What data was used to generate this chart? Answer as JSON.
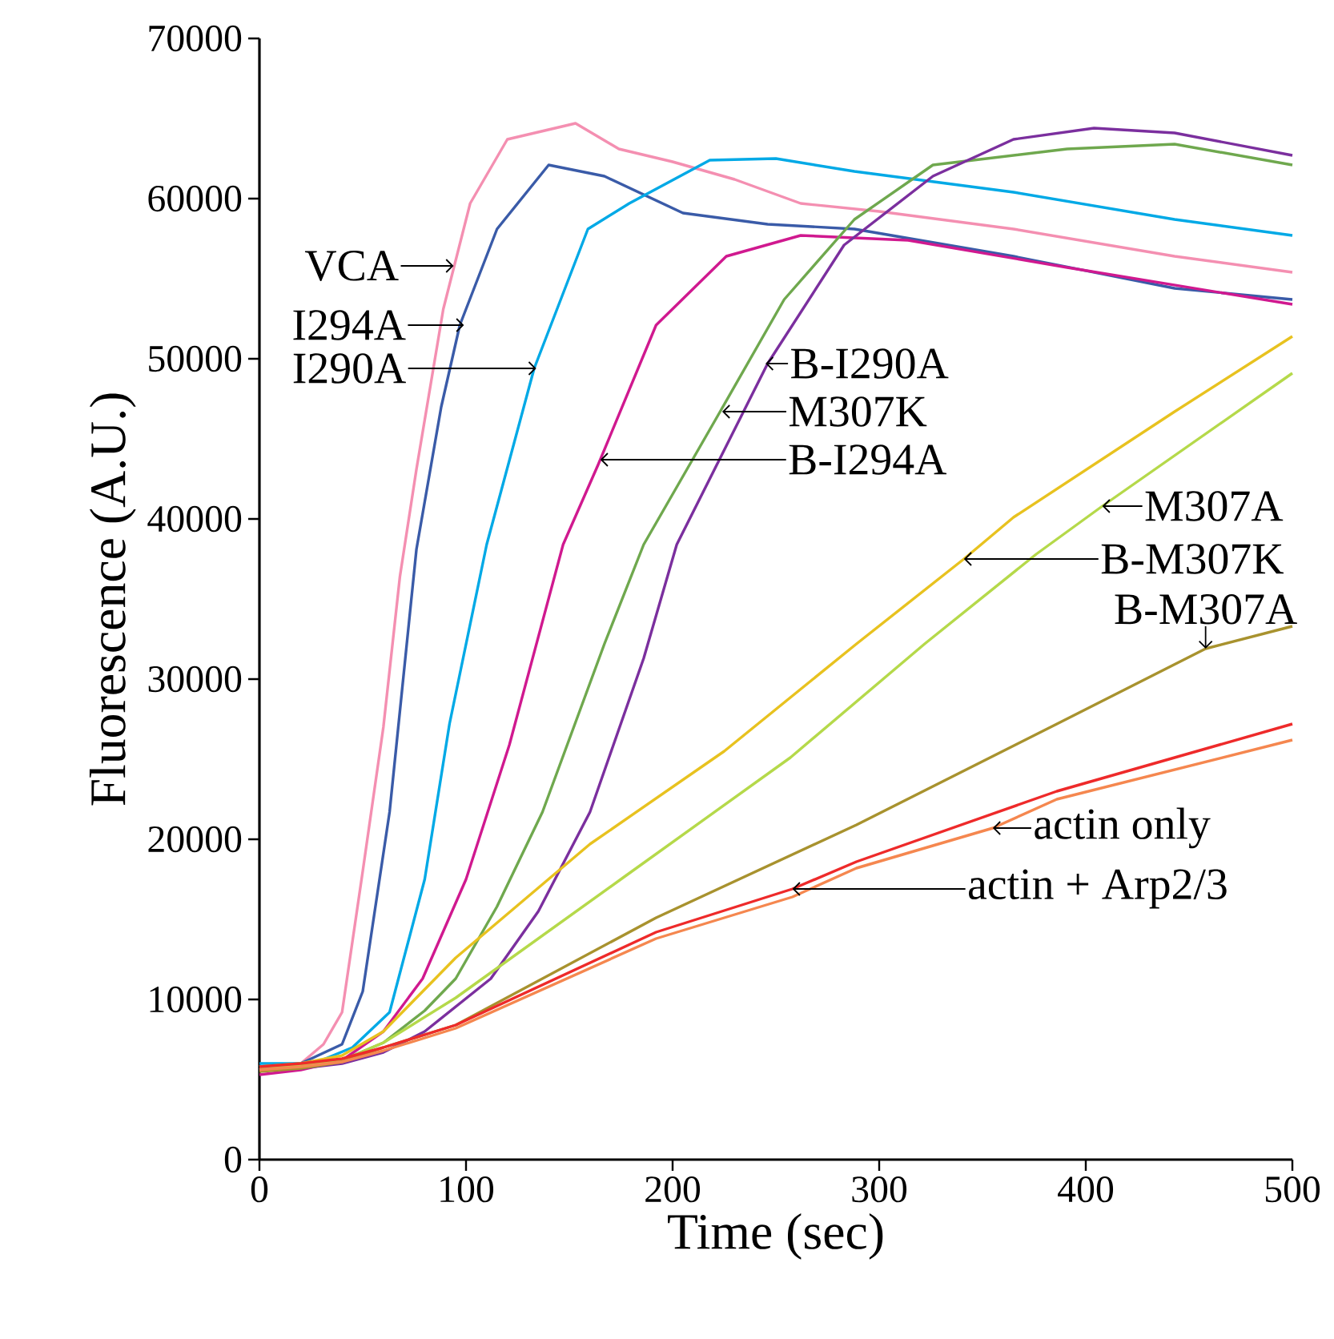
{
  "chart_data": {
    "type": "line",
    "xlabel": "Time (sec)",
    "ylabel": "Fluorescence (A.U.)",
    "xlim": [
      0,
      500
    ],
    "ylim": [
      0,
      70000
    ],
    "xticks": [
      0,
      100,
      200,
      300,
      400,
      500
    ],
    "yticks": [
      0,
      10000,
      20000,
      30000,
      40000,
      50000,
      60000,
      70000
    ],
    "marker": "none",
    "line_style": "solid",
    "series": [
      {
        "color": "#f48fb1",
        "x": [
          0,
          20,
          31,
          40,
          50,
          60,
          68,
          76,
          89,
          102,
          120,
          153,
          174,
          200,
          230,
          262,
          300,
          365,
          443,
          500
        ],
        "values": [
          5600,
          6000,
          7200,
          9200,
          18000,
          27000,
          36400,
          43100,
          53100,
          59700,
          63700,
          64700,
          63100,
          62300,
          61200,
          59700,
          59200,
          58100,
          56400,
          55400
        ]
      },
      {
        "color": "#3a5ba8",
        "x": [
          0,
          20,
          40,
          50,
          63,
          76,
          88,
          97,
          115,
          140,
          167,
          205,
          246,
          288,
          365,
          443,
          500
        ],
        "values": [
          5800,
          6000,
          7200,
          10500,
          21700,
          38100,
          47000,
          52100,
          58100,
          62100,
          61400,
          59100,
          58400,
          58100,
          56400,
          54400,
          53700
        ]
      },
      {
        "color": "#00a9e6",
        "x": [
          0,
          20,
          30,
          45,
          63,
          80,
          92,
          110,
          133,
          159,
          179,
          218,
          250,
          288,
          365,
          443,
          500
        ],
        "values": [
          6000,
          6000,
          6200,
          7000,
          9200,
          17500,
          27200,
          38400,
          49400,
          58100,
          59700,
          62400,
          62500,
          61700,
          60400,
          58700,
          57700
        ]
      },
      {
        "color": "#d0198f",
        "x": [
          0,
          20,
          40,
          60,
          79,
          100,
          121,
          147,
          164,
          192,
          226,
          262,
          314,
          391,
          500
        ],
        "values": [
          5300,
          5600,
          6200,
          8000,
          11300,
          17500,
          25900,
          38400,
          43400,
          52100,
          56400,
          57700,
          57400,
          55700,
          53400
        ]
      },
      {
        "color": "#6fa84e",
        "x": [
          0,
          20,
          40,
          60,
          80,
          95,
          115,
          137,
          167,
          186,
          223,
          254,
          288,
          326,
          391,
          443,
          500
        ],
        "values": [
          5800,
          5900,
          6200,
          7300,
          9300,
          11300,
          15800,
          21700,
          32200,
          38400,
          46700,
          53700,
          58700,
          62100,
          63100,
          63400,
          62100
        ]
      },
      {
        "color": "#7b2f9e",
        "x": [
          0,
          20,
          40,
          60,
          80,
          112,
          135,
          160,
          186,
          202,
          246,
          283,
          326,
          365,
          404,
          443,
          500
        ],
        "values": [
          5600,
          5700,
          6000,
          6700,
          8000,
          11300,
          15500,
          21700,
          31300,
          38400,
          49700,
          57100,
          61400,
          63700,
          64400,
          64100,
          62700
        ]
      },
      {
        "color": "#e8c21f",
        "x": [
          0,
          20,
          40,
          60,
          95,
          160,
          225,
          289,
          341,
          365,
          443,
          500
        ],
        "values": [
          5800,
          6000,
          6500,
          8000,
          12600,
          19700,
          25500,
          32200,
          37500,
          40100,
          46700,
          51400
        ]
      },
      {
        "color": "#b5d94a",
        "x": [
          0,
          20,
          40,
          60,
          95,
          176,
          257,
          322,
          376,
          408,
          500
        ],
        "values": [
          5800,
          5900,
          6200,
          7300,
          10100,
          17600,
          25100,
          32200,
          37800,
          40800,
          49100
        ]
      },
      {
        "color": "#a8922e",
        "x": [
          0,
          20,
          40,
          60,
          95,
          192,
          289,
          386,
          458,
          500
        ],
        "values": [
          5500,
          5700,
          6100,
          7000,
          8400,
          15100,
          20900,
          27200,
          31900,
          33300
        ]
      },
      {
        "color": "#f5874f",
        "x": [
          0,
          20,
          40,
          60,
          95,
          192,
          258,
          289,
          355,
          386,
          500
        ],
        "values": [
          5600,
          5800,
          6100,
          6800,
          8200,
          13800,
          16400,
          18200,
          20700,
          22500,
          26200
        ]
      },
      {
        "color": "#ee2a2a",
        "x": [
          0,
          20,
          40,
          60,
          95,
          192,
          258,
          289,
          386,
          500
        ],
        "values": [
          5800,
          6000,
          6300,
          7000,
          8400,
          14200,
          16900,
          18600,
          23000,
          27200
        ]
      }
    ],
    "annotations": [
      {
        "text": "VCA",
        "x": 94,
        "y": 55800
      },
      {
        "text": "I294A",
        "x": 99,
        "y": 52100
      },
      {
        "text": "I290A",
        "x": 134,
        "y": 49400
      },
      {
        "text": "B-I290A",
        "x": 245,
        "y": 49700
      },
      {
        "text": "M307K",
        "x": 224,
        "y": 46700
      },
      {
        "text": "B-I294A",
        "x": 165,
        "y": 43700
      },
      {
        "text": "M307A",
        "x": 408,
        "y": 40800
      },
      {
        "text": "B-M307K",
        "x": 341,
        "y": 37500
      },
      {
        "text": "B-M307A",
        "x": 458,
        "y": 31900
      },
      {
        "text": "actin only",
        "x": 355,
        "y": 20700
      },
      {
        "text": "actin + Arp2/3",
        "x": 258,
        "y": 16900
      }
    ]
  }
}
